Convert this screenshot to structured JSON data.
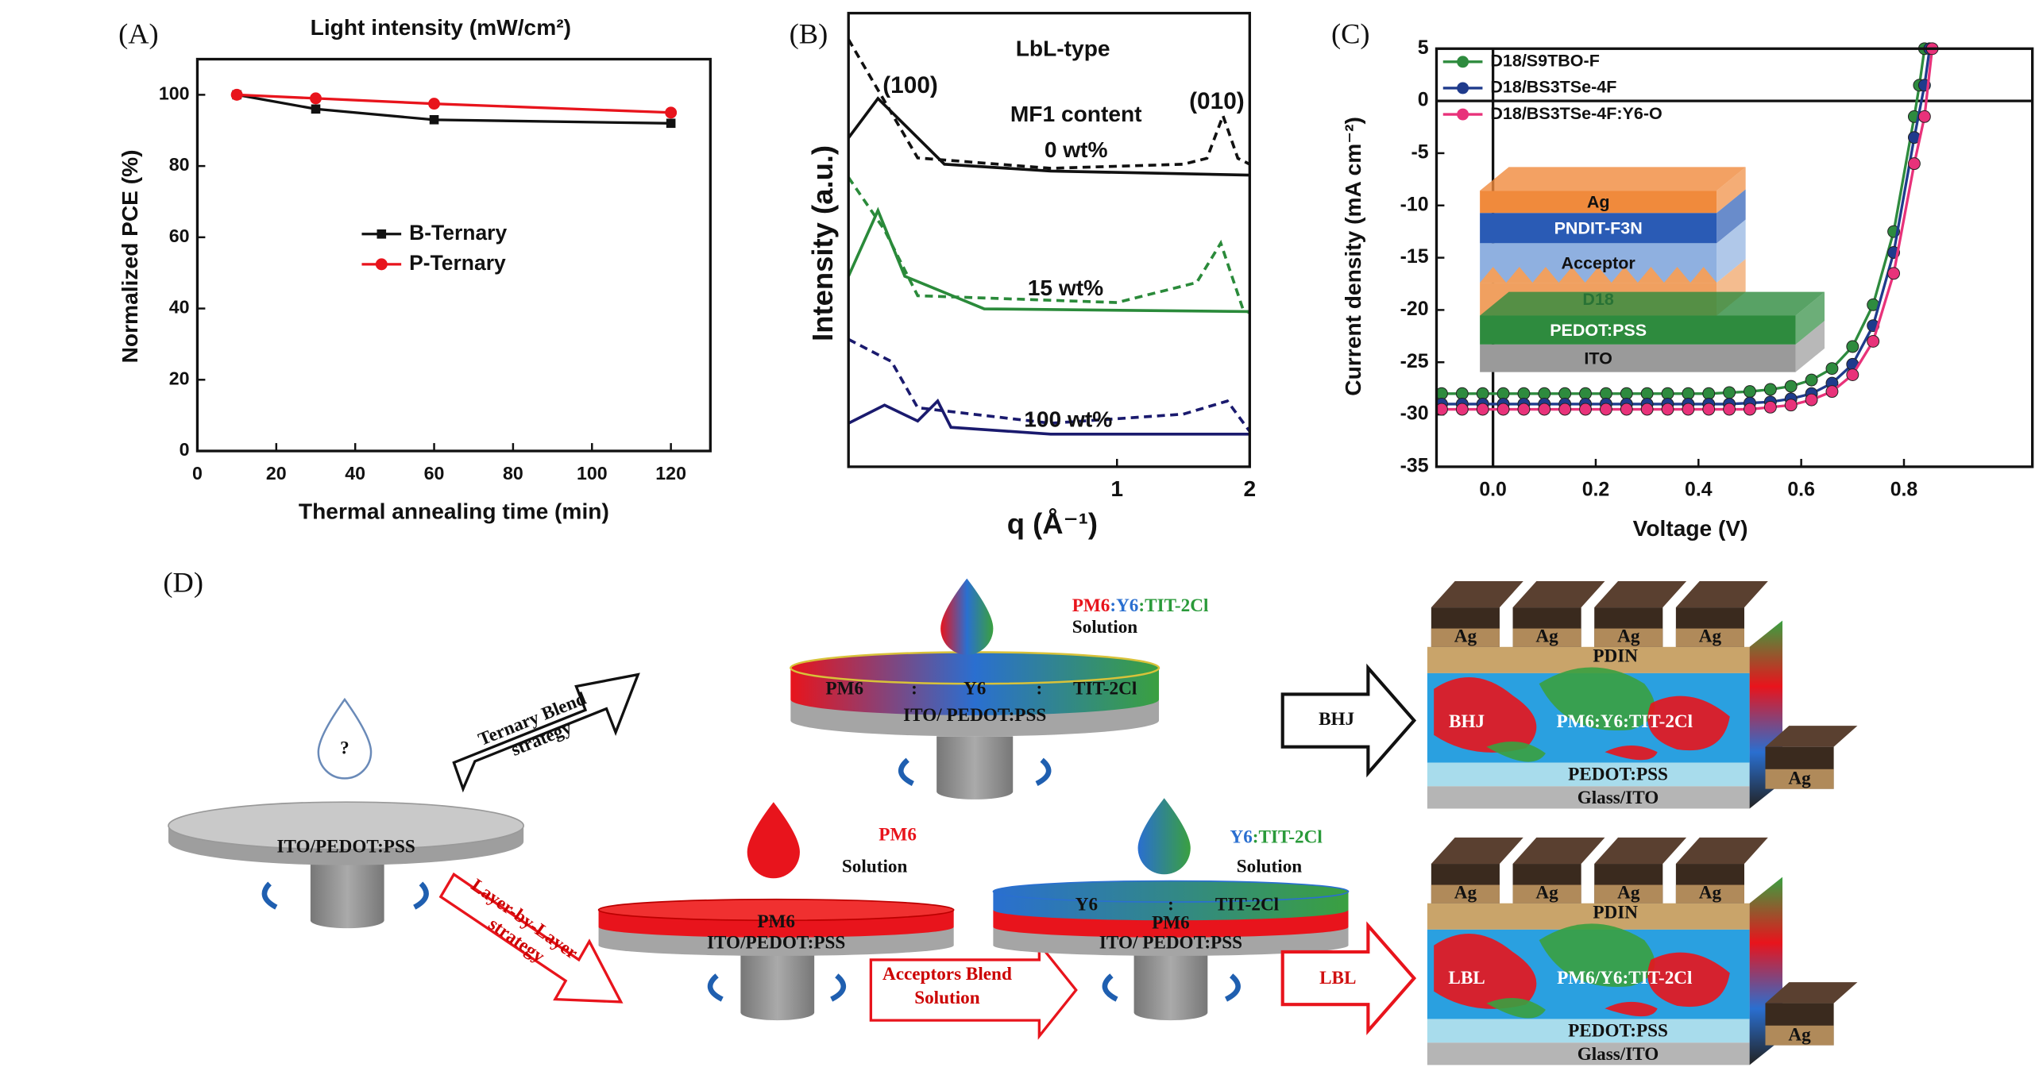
{
  "panel_labels": [
    "(A)",
    "(B)",
    "(C)"
  ],
  "chart_data": [
    {
      "type": "line",
      "title": "Light intensity (mW/cm²)",
      "x_label": "Thermal annealing time (min)",
      "y_label": "Normalized PCE (%)",
      "xlim": [
        0,
        130
      ],
      "ylim": [
        0,
        110
      ],
      "xticks": [
        0,
        20,
        40,
        60,
        80,
        100,
        120
      ],
      "yticks": [
        0,
        20,
        40,
        60,
        80,
        100
      ],
      "legend": "center",
      "series": [
        {
          "name": "B-Ternary",
          "color": "#111111",
          "marker": "square",
          "x": [
            10,
            30,
            60,
            120
          ],
          "values": [
            100,
            96,
            93,
            92
          ]
        },
        {
          "name": "P-Ternary",
          "color": "#e8141c",
          "marker": "circle",
          "x": [
            10,
            30,
            60,
            120
          ],
          "values": [
            100,
            99,
            97.5,
            95
          ]
        }
      ]
    },
    {
      "type": "line",
      "x_scale": "log",
      "x_label": "q (Å⁻¹)",
      "y_label": "Intensity (a.u.)",
      "xlim": [
        0.246,
        2
      ],
      "ylim": [
        0,
        100
      ],
      "xticks": [
        1,
        2
      ],
      "annotations": [
        "LbL-type",
        "(100)",
        "MF1 content",
        "(010)",
        "0 wt%",
        "15 wt%",
        "100 wt%"
      ],
      "series": [
        {
          "color": "#111111",
          "dashed": false,
          "x": [
            0.246,
            0.287,
            0.406,
            0.707,
            2
          ],
          "values": [
            72.5,
            81.2,
            66.7,
            65.2,
            64.3
          ]
        },
        {
          "color": "#111111",
          "dashed": true,
          "x": [
            0.246,
            0.353,
            0.707,
            1.414,
            1.6,
            1.74,
            1.88,
            2
          ],
          "values": [
            94.2,
            68.1,
            65.8,
            66.7,
            68,
            77.4,
            68,
            66.7
          ]
        },
        {
          "color": "#2a8a3a",
          "dashed": false,
          "x": [
            0.246,
            0.287,
            0.33,
            0.5,
            2
          ],
          "values": [
            42,
            56.5,
            42,
            34.8,
            34.2
          ]
        },
        {
          "color": "#2a8a3a",
          "dashed": true,
          "x": [
            0.246,
            0.297,
            0.353,
            1,
            1.516,
            1.72,
            1.93,
            2
          ],
          "values": [
            63.8,
            52.2,
            37.7,
            36.2,
            40.6,
            49.3,
            34.8,
            33.9
          ]
        },
        {
          "color": "#1a1a6e",
          "dashed": false,
          "x": [
            0.246,
            0.297,
            0.353,
            0.392,
            0.42,
            0.707,
            2
          ],
          "values": [
            9.6,
            13.6,
            10.1,
            14.5,
            8.7,
            7.2,
            7.2
          ]
        },
        {
          "color": "#1a1a6e",
          "dashed": true,
          "x": [
            0.246,
            0.308,
            0.353,
            0.707,
            1.414,
            1.78,
            2
          ],
          "values": [
            28.1,
            23.2,
            13,
            9.6,
            11.6,
            14.5,
            7.8
          ]
        }
      ]
    },
    {
      "type": "line",
      "x_label": "Voltage (V)",
      "y_label": "Current density (mA cm⁻²)",
      "xlim": [
        -0.11,
        1.05
      ],
      "ylim": [
        -35,
        5
      ],
      "xticks": [
        {
          "value": 0,
          "label": "0.0"
        },
        0.2,
        0.4,
        0.6,
        0.8
      ],
      "yticks": [
        5,
        0,
        -5,
        -10,
        -15,
        -20,
        -25,
        -30,
        -35
      ],
      "zero_lines": true,
      "legend": "upper left",
      "inset": {
        "layers": [
          "Ag",
          "PNDIT-F3N",
          "Acceptor",
          "D18",
          "PEDOT:PSS",
          "ITO"
        ]
      },
      "series": [
        {
          "name": "D18/S9TBO-F",
          "color": "#2e8b3e",
          "marker": "circle",
          "x": [
            -0.1,
            -0.06,
            -0.02,
            0.02,
            0.06,
            0.1,
            0.14,
            0.18,
            0.22,
            0.26,
            0.3,
            0.34,
            0.38,
            0.42,
            0.46,
            0.5,
            0.54,
            0.58,
            0.62,
            0.66,
            0.7,
            0.74,
            0.78,
            0.82,
            0.83,
            0.84
          ],
          "values": [
            -28,
            -28,
            -28,
            -28,
            -28,
            -28,
            -28,
            -28,
            -28,
            -28,
            -28,
            -28,
            -28,
            -28,
            -27.9,
            -27.8,
            -27.6,
            -27.3,
            -26.7,
            -25.6,
            -23.5,
            -19.5,
            -12.5,
            -1.5,
            1.5,
            5
          ]
        },
        {
          "name": "D18/BS3TSe-4F",
          "color": "#1f3b8c",
          "marker": "circle",
          "x": [
            -0.1,
            -0.06,
            -0.02,
            0.02,
            0.06,
            0.1,
            0.14,
            0.18,
            0.22,
            0.26,
            0.3,
            0.34,
            0.38,
            0.42,
            0.46,
            0.5,
            0.54,
            0.58,
            0.62,
            0.66,
            0.7,
            0.74,
            0.78,
            0.82,
            0.84,
            0.85
          ],
          "values": [
            -29,
            -29,
            -29,
            -29,
            -29,
            -29,
            -29,
            -29,
            -29,
            -29,
            -29,
            -29,
            -29,
            -29,
            -29,
            -28.9,
            -28.8,
            -28.5,
            -28,
            -27,
            -25.2,
            -21.5,
            -14.5,
            -3.5,
            1.5,
            5
          ]
        },
        {
          "name": "D18/BS3TSe-4F:Y6-O",
          "color": "#e8327a",
          "marker": "circle",
          "x": [
            -0.1,
            -0.06,
            -0.02,
            0.02,
            0.06,
            0.1,
            0.14,
            0.18,
            0.22,
            0.26,
            0.3,
            0.34,
            0.38,
            0.42,
            0.46,
            0.5,
            0.54,
            0.58,
            0.62,
            0.66,
            0.7,
            0.74,
            0.78,
            0.82,
            0.84,
            0.855
          ],
          "values": [
            -29.5,
            -29.5,
            -29.5,
            -29.5,
            -29.5,
            -29.5,
            -29.5,
            -29.5,
            -29.5,
            -29.5,
            -29.5,
            -29.5,
            -29.5,
            -29.5,
            -29.5,
            -29.5,
            -29.3,
            -29.1,
            -28.6,
            -27.8,
            -26.2,
            -23,
            -16.5,
            -6,
            -1.5,
            5
          ]
        }
      ]
    }
  ],
  "diagram": {
    "label": "(D)",
    "start": {
      "drop": "?",
      "substrate": "ITO/PEDOT:PSS"
    },
    "ternary_arrow": [
      "Ternary Blend",
      "strategy"
    ],
    "lbl_arrow": [
      "Layer-by-Layer",
      "strategy"
    ],
    "ternary": {
      "solution": [
        "PM6",
        ":Y6",
        ":TIT-2Cl"
      ],
      "solution_word": "Solution",
      "film": [
        "PM6",
        ":",
        "Y6",
        ":",
        "TIT-2Cl"
      ],
      "substrate": "ITO/ PEDOT:PSS"
    },
    "pm6": {
      "solution": "PM6",
      "solution_word": "Solution",
      "film": "PM6",
      "substrate": "ITO/PEDOT:PSS"
    },
    "acceptor_arrow": [
      "Acceptors Blend",
      "Solution"
    ],
    "lbl_film": {
      "solution": [
        "Y6",
        ":TIT-2Cl"
      ],
      "solution_word": "Solution",
      "film_top": [
        "Y6",
        ":",
        "TIT-2Cl"
      ],
      "film_bottom": "PM6",
      "substrate": "ITO/ PEDOT:PSS"
    },
    "bhj_arrow": "BHJ",
    "lbl_arrow_label": "LBL",
    "devices": [
      {
        "top": [
          "Ag",
          "Ag",
          "Ag",
          "Ag"
        ],
        "cathode_interlayer": "PDIN",
        "active_tag": "BHJ",
        "active": "PM6:Y6:TIT-2Cl",
        "hole_layer": "PEDOT:PSS",
        "substrate": "Glass/ITO",
        "side_electrode": "Ag"
      },
      {
        "top": [
          "Ag",
          "Ag",
          "Ag",
          "Ag"
        ],
        "cathode_interlayer": "PDIN",
        "active_tag": "LBL",
        "active": "PM6/Y6:TIT-2Cl",
        "hole_layer": "PEDOT:PSS",
        "substrate": "Glass/ITO",
        "side_electrode": "Ag"
      }
    ]
  }
}
